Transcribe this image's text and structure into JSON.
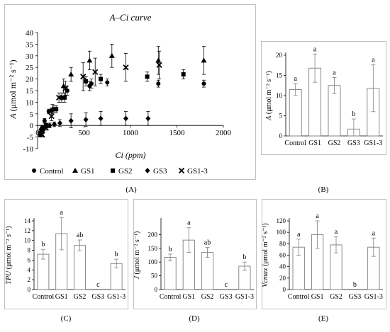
{
  "panels": {
    "A": {
      "label": "(A)"
    },
    "B": {
      "label": "(B)"
    },
    "C": {
      "label": "(C)"
    },
    "D": {
      "label": "(D)"
    },
    "E": {
      "label": "(E)"
    }
  },
  "chart_data": [
    {
      "id": "A",
      "type": "scatter",
      "title": "A–Ci curve",
      "xlabel": "Ci (ppm)",
      "ylabel": "A (μmol m⁻² s⁻¹)",
      "xlim": [
        0,
        2000
      ],
      "ylim": [
        -10,
        40
      ],
      "xticks": [
        0,
        500,
        1000,
        1500,
        2000
      ],
      "yticks": [
        -10,
        -5,
        0,
        5,
        10,
        15,
        20,
        25,
        30,
        35,
        40
      ],
      "grid": false,
      "legend_position": "bottom",
      "series": [
        {
          "name": "Control",
          "marker": "circle",
          "x": [
            60,
            75,
            120,
            150,
            175,
            260,
            320,
            560,
            580,
            750,
            1300,
            1790
          ],
          "y": [
            -1,
            2,
            6,
            6.5,
            7,
            12,
            15,
            17,
            18,
            18.5,
            18,
            18
          ],
          "err": [
            1,
            1,
            1,
            1,
            1.5,
            2,
            2,
            2,
            2,
            1.5,
            1.5,
            1.5
          ]
        },
        {
          "name": "GS1",
          "marker": "triangle",
          "x": [
            40,
            90,
            160,
            280,
            360,
            560,
            800,
            1300,
            1790
          ],
          "y": [
            -1,
            0,
            7,
            17,
            22,
            28,
            30,
            28,
            28
          ],
          "err": [
            1,
            1,
            2,
            3,
            3,
            4,
            5,
            6,
            6
          ]
        },
        {
          "name": "GS2",
          "marker": "square",
          "x": [
            30,
            60,
            90,
            200,
            290,
            520,
            680,
            1180,
            1570
          ],
          "y": [
            -4,
            -1,
            0,
            7,
            12,
            19,
            20,
            21,
            22
          ],
          "err": [
            1,
            1,
            1,
            1.5,
            2,
            2,
            2,
            2,
            2
          ]
        },
        {
          "name": "GS3",
          "marker": "diamond",
          "x": [
            30,
            60,
            130,
            180,
            240,
            360,
            520,
            680,
            950,
            1190
          ],
          "y": [
            -3,
            -2,
            0,
            0.5,
            1,
            2,
            2.5,
            3,
            3,
            3
          ],
          "err": [
            1,
            1,
            1,
            1,
            1.5,
            3,
            3,
            3,
            3,
            3
          ]
        },
        {
          "name": "GS1-3",
          "marker": "x",
          "x": [
            50,
            90,
            150,
            230,
            300,
            490,
            620,
            950,
            1310
          ],
          "y": [
            -4,
            -1,
            4,
            12,
            16,
            21,
            23,
            25,
            26
          ],
          "err": [
            1,
            1,
            2,
            2,
            3,
            6,
            6,
            6,
            6
          ]
        }
      ]
    },
    {
      "id": "B",
      "type": "bar",
      "ylabel": "A (μmol m⁻² s⁻¹)",
      "categories": [
        "Control",
        "GS1",
        "GS2",
        "GS3",
        "GS1-3"
      ],
      "values": [
        11.5,
        16.8,
        12.5,
        1.7,
        11.8
      ],
      "errors": [
        1.5,
        3.5,
        2,
        2.5,
        5.8
      ],
      "letters": [
        "a",
        "a",
        "a",
        "b",
        "a"
      ],
      "ylim": [
        0,
        20
      ],
      "yticks": [
        0,
        5,
        10,
        15,
        20
      ]
    },
    {
      "id": "C",
      "type": "bar",
      "ylabel": "TPU (μmol m⁻² s⁻¹)",
      "categories": [
        "Control",
        "GS1",
        "GS2",
        "GS3",
        "GS1-3"
      ],
      "values": [
        7.2,
        11.4,
        9.0,
        0,
        5.3
      ],
      "errors": [
        1.0,
        3.3,
        1.1,
        0,
        0.9
      ],
      "letters": [
        "b",
        "a",
        "ab",
        "c",
        "b"
      ],
      "ylim": [
        0,
        14
      ],
      "yticks": [
        0,
        2,
        4,
        6,
        8,
        10,
        12,
        14
      ]
    },
    {
      "id": "D",
      "type": "bar",
      "ylabel": "J (μmol m⁻² s⁻¹)",
      "categories": [
        "Control",
        "GS1",
        "GS2",
        "GS3",
        "GS1-3"
      ],
      "values": [
        117,
        180,
        135,
        0,
        85
      ],
      "errors": [
        12,
        45,
        18,
        0,
        15
      ],
      "letters": [
        "b",
        "a",
        "ab",
        "c",
        "b"
      ],
      "ylim": [
        0,
        250
      ],
      "yticks": [
        0,
        50,
        100,
        150,
        200
      ]
    },
    {
      "id": "E",
      "type": "bar",
      "ylabel": "Vcmax (μmol m⁻² s⁻¹)",
      "categories": [
        "Control",
        "GS1",
        "GS2",
        "GS3",
        "GS1-3"
      ],
      "values": [
        74,
        96,
        78,
        0,
        74
      ],
      "errors": [
        14,
        24,
        14,
        0,
        16
      ],
      "letters": [
        "a",
        "a",
        "a",
        "b",
        "a"
      ],
      "ylim": [
        0,
        120
      ],
      "yticks": [
        0,
        20,
        40,
        60,
        80,
        100,
        120
      ]
    }
  ]
}
